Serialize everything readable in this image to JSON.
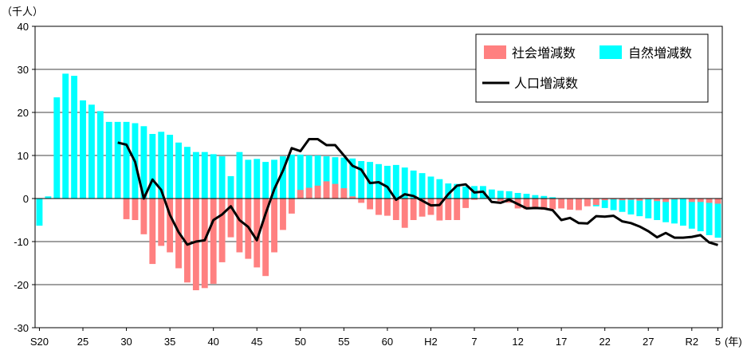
{
  "chart_data": {
    "type": "bar",
    "unit_label": "（千人）",
    "x_unit_label": "(年)",
    "ylim": [
      -30,
      40
    ],
    "y_ticks": [
      40,
      30,
      20,
      10,
      0,
      -10,
      -20,
      -30
    ],
    "x_tick_labels": [
      {
        "index": 0,
        "label": "S20"
      },
      {
        "index": 5,
        "label": "25"
      },
      {
        "index": 10,
        "label": "30"
      },
      {
        "index": 15,
        "label": "35"
      },
      {
        "index": 20,
        "label": "40"
      },
      {
        "index": 25,
        "label": "45"
      },
      {
        "index": 30,
        "label": "50"
      },
      {
        "index": 35,
        "label": "55"
      },
      {
        "index": 40,
        "label": "60"
      },
      {
        "index": 45,
        "label": "H2"
      },
      {
        "index": 50,
        "label": "7"
      },
      {
        "index": 55,
        "label": "12"
      },
      {
        "index": 60,
        "label": "17"
      },
      {
        "index": 65,
        "label": "22"
      },
      {
        "index": 70,
        "label": "27"
      },
      {
        "index": 75,
        "label": "R2"
      },
      {
        "index": 78,
        "label": "5"
      }
    ],
    "grid": true,
    "legend_position": "top-right",
    "colors": {
      "social": "#ff8080",
      "natural": "#00ffff",
      "line": "#000000"
    },
    "series": [
      {
        "name": "社会増減数",
        "type": "bar",
        "values": [
          0,
          0,
          0,
          0,
          0,
          0,
          0,
          0,
          0,
          0,
          -4.8,
          -5,
          -8.3,
          -15.2,
          -11,
          -12.5,
          -16.2,
          -19.5,
          -21.3,
          -20.8,
          -19.8,
          -14.8,
          -9,
          -12.5,
          -14,
          -16,
          -18,
          -12.5,
          -7.3,
          -3.5,
          2,
          2.5,
          3,
          4,
          3.4,
          2.4,
          0.5,
          -1,
          -2.5,
          -3.8,
          -4,
          -5,
          -6.8,
          -5,
          -4.2,
          -3.8,
          -5.1,
          -5,
          -5,
          -2.2,
          -0.3,
          0,
          0,
          -0.6,
          -1,
          -2.3,
          -2.5,
          -2,
          -2.6,
          -2.5,
          -2.3,
          -2.6,
          -2.7,
          -1.8,
          -1.5,
          -0.4,
          -0.2,
          -0.4,
          -0.3,
          -0.5,
          -0.2,
          -0.6,
          -0.8,
          -0.2,
          -0.1,
          -0.8,
          -0.8,
          -1,
          -1.2
        ]
      },
      {
        "name": "自然増減数",
        "type": "bar",
        "values": [
          -6.3,
          0.5,
          23.5,
          29,
          28.5,
          22.8,
          21.8,
          20.3,
          17.8,
          17.8,
          17.8,
          17.5,
          16.8,
          15,
          15.5,
          14.8,
          13,
          12,
          10.8,
          10.8,
          10.3,
          9.8,
          5.2,
          10.8,
          9,
          9.2,
          8.5,
          9,
          9.8,
          10.2,
          10.2,
          10,
          10,
          9.8,
          9.6,
          9.5,
          9.3,
          8.7,
          8.5,
          8,
          7.6,
          7.8,
          7.2,
          6.5,
          5.9,
          5.1,
          4.5,
          3.5,
          3.4,
          2.8,
          2.9,
          2.9,
          2.1,
          1.8,
          1.7,
          1.3,
          1.1,
          0.8,
          0.6,
          0.3,
          0.1,
          -0.3,
          -1,
          -1.3,
          -1.8,
          -2.2,
          -2.7,
          -3.1,
          -3.7,
          -4.1,
          -4.6,
          -5,
          -5.5,
          -5.8,
          -6.3,
          -7,
          -7.6,
          -8.5,
          -9.1
        ]
      },
      {
        "name": "人口増減数",
        "type": "line",
        "start_index": 9,
        "values": [
          13,
          12.5,
          8.5,
          0,
          4.4,
          2,
          -3.8,
          -7.8,
          -10.7,
          -10,
          -9.7,
          -5,
          -3.7,
          -1.8,
          -5,
          -6.6,
          -9.7,
          -3.5,
          2.2,
          6.5,
          11.7,
          11,
          13.8,
          13.8,
          12.4,
          12.4,
          10,
          7.6,
          6.7,
          3.6,
          3.8,
          2.7,
          -0.3,
          1,
          0.6,
          -0.5,
          -1.6,
          -1.5,
          1,
          3,
          3.3,
          1.4,
          1.6,
          -0.8,
          -1,
          -0.3,
          -1.3,
          -2.3,
          -2.2,
          -2.3,
          -2.7,
          -5,
          -4.5,
          -5.7,
          -5.8,
          -4.1,
          -4.2,
          -4,
          -5.3,
          -5.7,
          -6.5,
          -7.6,
          -9,
          -8,
          -9.1,
          -9.1,
          -8.9,
          -8.5,
          -10.2,
          -10.8
        ]
      }
    ]
  }
}
